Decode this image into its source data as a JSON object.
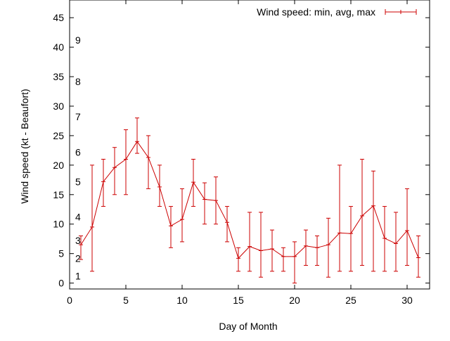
{
  "chart_data": {
    "type": "line",
    "title": "",
    "xlabel": "Day of Month",
    "ylabel": "Wind speed (kt - Beaufort)",
    "xlim": [
      0,
      32
    ],
    "ylim": [
      -1,
      48
    ],
    "x_ticks": [
      0,
      5,
      10,
      15,
      20,
      25,
      30
    ],
    "y_ticks": [
      0,
      5,
      10,
      15,
      20,
      25,
      30,
      35,
      40,
      45
    ],
    "grid": false,
    "legend_position": "top-right",
    "beaufort_labels": [
      {
        "label": "1",
        "value": 1.2
      },
      {
        "label": "2",
        "value": 4.2
      },
      {
        "label": "3",
        "value": 7.2
      },
      {
        "label": "4",
        "value": 11.2
      },
      {
        "label": "5",
        "value": 17.2
      },
      {
        "label": "6",
        "value": 22.2
      },
      {
        "label": "7",
        "value": 28.2
      },
      {
        "label": "8",
        "value": 34.2
      },
      {
        "label": "9",
        "value": 41.2
      }
    ],
    "series": [
      {
        "name": "Wind speed: min, avg, max",
        "color": "#cc0000",
        "x": [
          1,
          2,
          3,
          4,
          5,
          6,
          7,
          8,
          9,
          10,
          11,
          12,
          13,
          14,
          15,
          16,
          17,
          18,
          19,
          20,
          21,
          22,
          23,
          24,
          25,
          26,
          27,
          28,
          29,
          30,
          31
        ],
        "avg": [
          6.5,
          9.5,
          17.2,
          19.6,
          21.0,
          24.0,
          21.3,
          16.3,
          9.7,
          10.8,
          17.1,
          14.2,
          14.0,
          10.3,
          4.2,
          6.2,
          5.5,
          5.8,
          4.5,
          4.5,
          6.3,
          6.0,
          6.5,
          8.5,
          8.4,
          11.4,
          13.1,
          7.6,
          6.7,
          8.9,
          4.3
        ],
        "min": [
          4,
          2,
          13,
          15,
          15,
          22,
          16,
          13,
          6,
          7,
          13,
          10,
          10,
          7,
          2,
          2,
          1,
          2,
          2,
          0,
          3,
          3,
          1,
          2,
          2,
          3,
          2,
          2,
          2,
          3,
          1
        ],
        "max": [
          8,
          20,
          21,
          23,
          26,
          28,
          25,
          20,
          13,
          16,
          21,
          17,
          18,
          13,
          6,
          12,
          12,
          9,
          6,
          7,
          9,
          8,
          11,
          20,
          13,
          21,
          19,
          13,
          12,
          16,
          8
        ]
      }
    ]
  }
}
